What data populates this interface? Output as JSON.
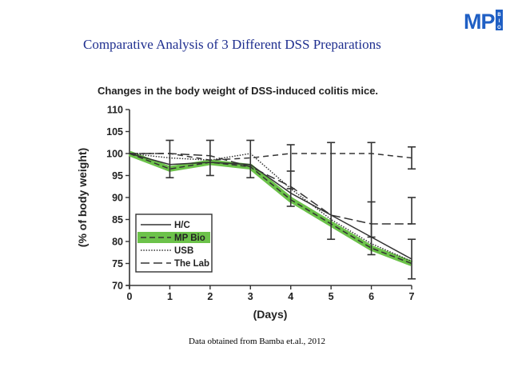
{
  "slide": {
    "title": "Comparative Analysis of 3 Different DSS Preparations",
    "footnote": "Data obtained from Bamba et.al., 2012"
  },
  "logo": {
    "text": "MP",
    "side_text": "BIO",
    "color": "#1f5fc4"
  },
  "chart_data": {
    "type": "line",
    "title": "Changes in the body weight of DSS-induced colitis mice.",
    "xlabel": "(Days)",
    "ylabel": "(% of body weight)",
    "x": [
      0,
      1,
      2,
      3,
      4,
      5,
      6,
      7
    ],
    "xlim": [
      0,
      7
    ],
    "ylim": [
      70,
      110
    ],
    "yticks": [
      70,
      75,
      80,
      85,
      90,
      95,
      100,
      105,
      110
    ],
    "grid": false,
    "legend_position": "bottom-left",
    "series": [
      {
        "name": "H/C",
        "style": "solid",
        "color": "#333333",
        "values": [
          100,
          97.5,
          98,
          97.5,
          91,
          86,
          81,
          76
        ]
      },
      {
        "name": "MP Bio",
        "style": "dashed-highlight",
        "color": "#333333",
        "highlight": "#6cc24a",
        "values": [
          100,
          96.5,
          98,
          97,
          89.5,
          84,
          78.5,
          75
        ]
      },
      {
        "name": "USB",
        "style": "dotted",
        "color": "#333333",
        "values": [
          100,
          99,
          98.5,
          100,
          92,
          85,
          79.5,
          75.5
        ]
      },
      {
        "name": "The Lab",
        "style": "long-dash",
        "color": "#333333",
        "values": [
          100,
          100,
          99.5,
          97,
          92.5,
          86,
          84,
          84
        ]
      },
      {
        "name": "",
        "style": "short-dash",
        "color": "#333333",
        "values": [
          100,
          100,
          98.5,
          99,
          100,
          100,
          100,
          99
        ]
      }
    ],
    "error_bars": [
      {
        "x": 1,
        "low": 94.5,
        "high": 103
      },
      {
        "x": 2,
        "low": 95,
        "high": 103
      },
      {
        "x": 3,
        "low": 94.5,
        "high": 103
      },
      {
        "x": 4,
        "low": 88,
        "high": 102
      },
      {
        "x": 4,
        "low": 92,
        "high": 96
      },
      {
        "x": 5,
        "low": 80.5,
        "high": 102.5
      },
      {
        "x": 6,
        "low": 77,
        "high": 102.5
      },
      {
        "x": 6,
        "low": 81,
        "high": 89
      },
      {
        "x": 7,
        "low": 71.5,
        "high": 80.5
      },
      {
        "x": 7,
        "low": 84,
        "high": 90
      },
      {
        "x": 7,
        "low": 96.5,
        "high": 101.5
      }
    ]
  }
}
